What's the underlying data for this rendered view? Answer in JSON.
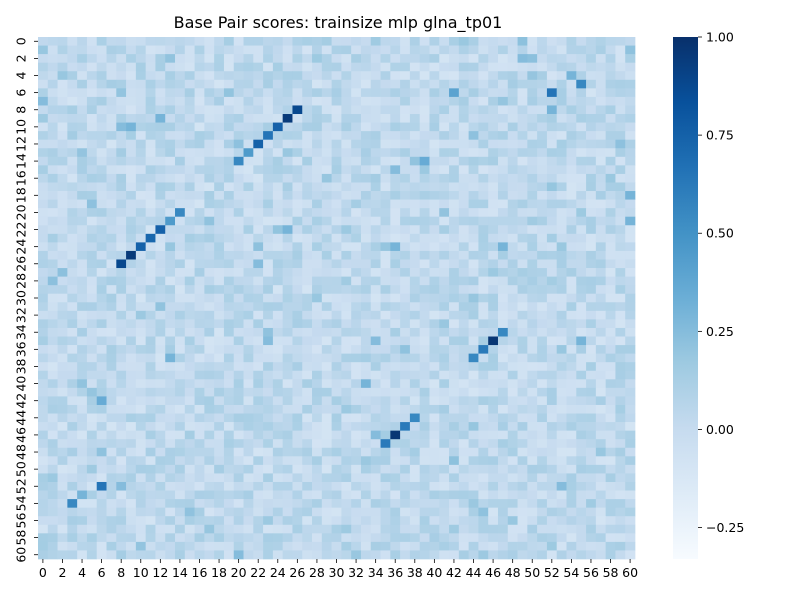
{
  "chart_data": {
    "type": "heatmap",
    "title": "Base Pair scores: trainsize mlp glna_tp01",
    "n": 61,
    "x_tick_labels": [
      "0",
      "2",
      "4",
      "6",
      "8",
      "10",
      "12",
      "14",
      "16",
      "18",
      "20",
      "22",
      "24",
      "26",
      "28",
      "30",
      "32",
      "34",
      "36",
      "38",
      "40",
      "42",
      "44",
      "46",
      "48",
      "50",
      "52",
      "54",
      "56",
      "58",
      "60"
    ],
    "y_tick_labels": [
      "0",
      "2",
      "4",
      "6",
      "8",
      "10",
      "12",
      "14",
      "16",
      "18",
      "20",
      "22",
      "24",
      "26",
      "28",
      "30",
      "32",
      "34",
      "36",
      "38",
      "40",
      "42",
      "44",
      "46",
      "48",
      "50",
      "52",
      "54",
      "56",
      "58",
      "60"
    ],
    "colorbar": {
      "min": -0.33,
      "max": 1.0,
      "tick_labels": [
        "1.00",
        "0.75",
        "0.50",
        "0.25",
        "0.00",
        "−0.25"
      ],
      "colormap": "Blues"
    },
    "background_score": 0.02,
    "highlighted_cells": [
      {
        "row": 8,
        "col": 26,
        "value": 0.88
      },
      {
        "row": 9,
        "col": 25,
        "value": 0.95
      },
      {
        "row": 10,
        "col": 24,
        "value": 0.75
      },
      {
        "row": 11,
        "col": 23,
        "value": 0.65
      },
      {
        "row": 12,
        "col": 22,
        "value": 0.75
      },
      {
        "row": 13,
        "col": 21,
        "value": 0.45
      },
      {
        "row": 14,
        "col": 20,
        "value": 0.55
      },
      {
        "row": 20,
        "col": 14,
        "value": 0.55
      },
      {
        "row": 21,
        "col": 13,
        "value": 0.45
      },
      {
        "row": 22,
        "col": 12,
        "value": 0.75
      },
      {
        "row": 23,
        "col": 11,
        "value": 0.72
      },
      {
        "row": 24,
        "col": 10,
        "value": 0.75
      },
      {
        "row": 25,
        "col": 9,
        "value": 0.95
      },
      {
        "row": 26,
        "col": 8,
        "value": 0.88
      },
      {
        "row": 6,
        "col": 52,
        "value": 0.65
      },
      {
        "row": 5,
        "col": 55,
        "value": 0.55
      },
      {
        "row": 6,
        "col": 42,
        "value": 0.4
      },
      {
        "row": 8,
        "col": 52,
        "value": 0.3
      },
      {
        "row": 4,
        "col": 54,
        "value": 0.3
      },
      {
        "row": 34,
        "col": 47,
        "value": 0.55
      },
      {
        "row": 35,
        "col": 46,
        "value": 0.97
      },
      {
        "row": 36,
        "col": 45,
        "value": 0.62
      },
      {
        "row": 37,
        "col": 44,
        "value": 0.55
      },
      {
        "row": 44,
        "col": 38,
        "value": 0.55
      },
      {
        "row": 45,
        "col": 37,
        "value": 0.62
      },
      {
        "row": 46,
        "col": 36,
        "value": 0.97
      },
      {
        "row": 47,
        "col": 35,
        "value": 0.62
      },
      {
        "row": 52,
        "col": 6,
        "value": 0.65
      },
      {
        "row": 54,
        "col": 3,
        "value": 0.55
      },
      {
        "row": 53,
        "col": 4,
        "value": 0.3
      },
      {
        "row": 42,
        "col": 6,
        "value": 0.35
      },
      {
        "row": 52,
        "col": 8,
        "value": 0.25
      },
      {
        "row": 10,
        "col": 9,
        "value": 0.3
      },
      {
        "row": 10,
        "col": 8,
        "value": 0.25
      },
      {
        "row": 9,
        "col": 12,
        "value": 0.3
      },
      {
        "row": 14,
        "col": 39,
        "value": 0.35
      },
      {
        "row": 22,
        "col": 25,
        "value": 0.3
      },
      {
        "row": 24,
        "col": 36,
        "value": 0.3
      },
      {
        "row": 26,
        "col": 22,
        "value": 0.25
      },
      {
        "row": 35,
        "col": 23,
        "value": 0.25
      },
      {
        "row": 35,
        "col": 55,
        "value": 0.3
      },
      {
        "row": 37,
        "col": 13,
        "value": 0.3
      },
      {
        "row": 35,
        "col": 34,
        "value": 0.25
      },
      {
        "row": 46,
        "col": 34,
        "value": 0.25
      },
      {
        "row": 40,
        "col": 33,
        "value": 0.3
      },
      {
        "row": 24,
        "col": 47,
        "value": 0.3
      },
      {
        "row": 52,
        "col": 53,
        "value": 0.25
      },
      {
        "row": 60,
        "col": 20,
        "value": 0.25
      },
      {
        "row": 18,
        "col": 60,
        "value": 0.3
      },
      {
        "row": 21,
        "col": 60,
        "value": 0.3
      },
      {
        "row": 7,
        "col": 0,
        "value": 0.25
      },
      {
        "row": 15,
        "col": 36,
        "value": 0.25
      },
      {
        "row": 2,
        "col": 49,
        "value": 0.25
      }
    ]
  }
}
